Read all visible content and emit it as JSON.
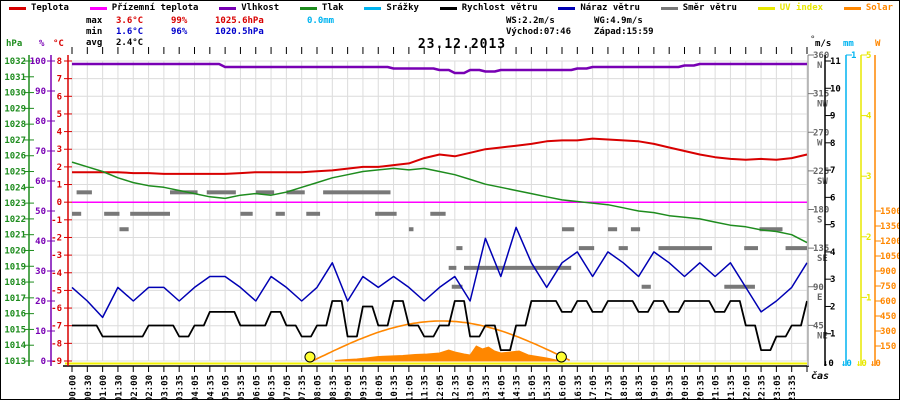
{
  "title": "23.12.2013",
  "legend": {
    "items": [
      {
        "name": "teplota",
        "label": "Teplota",
        "color": "#d80000",
        "text_color": "#000000"
      },
      {
        "name": "prizemni-teplota",
        "label": "Přízemní teplota",
        "color": "#ff00ff",
        "text_color": "#000000"
      },
      {
        "name": "vlhkost",
        "label": "Vlhkost",
        "color": "#7800b4",
        "text_color": "#000000"
      },
      {
        "name": "tlak",
        "label": "Tlak",
        "color": "#1e8c1e",
        "text_color": "#000000"
      },
      {
        "name": "srazky",
        "label": "Srážky",
        "color": "#00b4f0",
        "text_color": "#000000"
      },
      {
        "name": "rychlost-vetru",
        "label": "Rychlost větru",
        "color": "#000000",
        "text_color": "#000000"
      },
      {
        "name": "naraz-vetru",
        "label": "Náraz větru",
        "color": "#0000b4",
        "text_color": "#000000"
      },
      {
        "name": "smer-vetru",
        "label": "Směr větru",
        "color": "#787878",
        "text_color": "#000000"
      },
      {
        "name": "uv-index",
        "label": "UV index",
        "color": "#e8e800",
        "text_color": "#e8e800"
      },
      {
        "name": "solar",
        "label": "Solar",
        "color": "#ff8700",
        "text_color": "#ff8700"
      }
    ]
  },
  "stats": {
    "max": {
      "label": "max",
      "temp": "3.6°C",
      "hum": "99%",
      "press": "1025.6hPa",
      "rain": "0.0mm"
    },
    "min": {
      "label": "min",
      "temp": "1.6°C",
      "hum": "96%",
      "press": "1020.5hPa"
    },
    "avg": {
      "label": "avg",
      "temp": "2.4°C"
    },
    "ws": "WS:2.2m/s",
    "wg": "WG:4.9m/s",
    "sunrise": "Východ:07:46",
    "sunset": "Západ:15:59",
    "max_color": "#d80000",
    "min_color": "#0000cc",
    "rain_color": "#00b4f0"
  },
  "axis_headers": {
    "pressure": "hPa",
    "humidity": "%",
    "temperature": "°C",
    "direction": "°",
    "wind": "m/s",
    "rain": "mm",
    "solar": "W"
  },
  "footer": {
    "time_label": "čas",
    "zero_wind": "↓0",
    "zero_rain": "↓0",
    "zero_uv": "↓0",
    "zero_solar": "↓0"
  },
  "chart_data": {
    "type": "line",
    "title": "23.12.2013",
    "xlabel": "čas",
    "x_start_hour": 0,
    "x_end_hour": 24,
    "series_step_hours": 0.5,
    "grid": true,
    "x_tick_labels": [
      "00:00",
      "00:30",
      "01:00",
      "01:30",
      "02:00",
      "02:30",
      "03:05",
      "03:35",
      "04:05",
      "04:35",
      "05:05",
      "05:35",
      "06:05",
      "06:35",
      "07:05",
      "07:35",
      "08:05",
      "08:35",
      "09:05",
      "09:35",
      "10:05",
      "10:35",
      "11:05",
      "11:35",
      "12:05",
      "12:35",
      "13:05",
      "13:35",
      "14:05",
      "14:35",
      "15:05",
      "15:35",
      "16:05",
      "16:35",
      "17:05",
      "17:35",
      "18:05",
      "18:35",
      "19:05",
      "19:35",
      "20:05",
      "20:35",
      "21:05",
      "21:35",
      "22:05",
      "22:35",
      "23:05",
      "23:35"
    ],
    "axes": {
      "temperature_c": {
        "label": "°C",
        "min": -9,
        "max": 8,
        "tick_step": 1,
        "color": "#d80000"
      },
      "pressure_hpa": {
        "label": "hPa",
        "min": 1013,
        "max": 1032,
        "tick_step": 1,
        "color": "#1e8c1e"
      },
      "humidity_pct": {
        "label": "%",
        "min": 0,
        "max": 100,
        "tick_step": 10,
        "color": "#7800b4"
      },
      "direction_deg": {
        "label": "°",
        "min": 0,
        "max": 360,
        "tick_step": 45,
        "color": "#787878",
        "cardinals": [
          {
            "deg": 360,
            "num": "360",
            "card": "N"
          },
          {
            "deg": 315,
            "num": "315",
            "card": "NW"
          },
          {
            "deg": 270,
            "num": "270",
            "card": "W"
          },
          {
            "deg": 225,
            "num": "225",
            "card": "SW"
          },
          {
            "deg": 180,
            "num": "180",
            "card": "S"
          },
          {
            "deg": 135,
            "num": "135",
            "card": "SE"
          },
          {
            "deg": 90,
            "num": "90",
            "card": "E"
          },
          {
            "deg": 45,
            "num": "45",
            "card": "NE"
          }
        ]
      },
      "wind_ms": {
        "label": "m/s",
        "min": 0,
        "max": 11,
        "tick_step": 1,
        "color": "#000000"
      },
      "rain_mm": {
        "label": "mm",
        "min": 0,
        "max": 1,
        "tick_step": 1,
        "color": "#00b4f0"
      },
      "uv_index": {
        "label": "",
        "min": 0,
        "max": 5,
        "tick_step": 1,
        "color": "#e8e800"
      },
      "solar_w": {
        "label": "W",
        "min": 0,
        "max": 1500,
        "tick_step": 150,
        "color": "#ff8700"
      }
    },
    "series": [
      {
        "name": "temperature",
        "axis": "temperature_c",
        "color": "#d80000",
        "width": 2,
        "mode": "line",
        "values": [
          1.7,
          1.7,
          1.7,
          1.7,
          1.65,
          1.65,
          1.6,
          1.6,
          1.6,
          1.6,
          1.6,
          1.65,
          1.7,
          1.7,
          1.7,
          1.7,
          1.75,
          1.8,
          1.9,
          2.0,
          2.0,
          2.1,
          2.2,
          2.5,
          2.7,
          2.6,
          2.8,
          3.0,
          3.1,
          3.2,
          3.3,
          3.45,
          3.5,
          3.5,
          3.6,
          3.55,
          3.5,
          3.45,
          3.3,
          3.1,
          2.9,
          2.7,
          2.55,
          2.45,
          2.4,
          2.45,
          2.4,
          2.5,
          2.7
        ]
      },
      {
        "name": "ground_temperature",
        "axis": "temperature_c",
        "color": "#ff00ff",
        "width": 1.5,
        "mode": "line",
        "values": [
          0,
          0,
          0,
          0,
          0,
          0,
          0,
          0,
          0,
          0,
          0,
          0,
          0,
          0,
          0,
          0,
          0,
          0,
          0,
          0,
          0,
          0,
          0,
          0,
          0,
          0,
          0,
          0,
          0,
          0,
          0,
          0,
          0,
          0,
          0,
          0,
          0,
          0,
          0,
          0,
          0,
          0,
          0,
          0,
          0,
          0,
          0,
          0,
          0
        ]
      },
      {
        "name": "humidity",
        "axis": "humidity_pct",
        "color": "#7800b4",
        "width": 2.5,
        "mode": "step",
        "values": [
          99,
          99,
          99,
          99,
          99,
          99,
          99,
          99,
          99,
          99,
          98,
          98,
          98,
          98,
          98,
          98,
          98,
          98,
          98,
          98,
          98,
          97.5,
          97.5,
          97.5,
          97,
          96,
          97,
          96.5,
          97,
          97,
          97,
          97,
          97,
          97.5,
          98,
          98,
          98,
          98,
          98,
          98,
          98.5,
          99,
          99,
          99,
          99,
          99,
          99,
          99,
          99
        ]
      },
      {
        "name": "pressure",
        "axis": "pressure_hpa",
        "color": "#1e8c1e",
        "width": 1.5,
        "mode": "line",
        "values": [
          1025.6,
          1025.3,
          1025.0,
          1024.6,
          1024.3,
          1024.1,
          1024.0,
          1023.8,
          1023.6,
          1023.4,
          1023.3,
          1023.5,
          1023.6,
          1023.5,
          1023.7,
          1024.0,
          1024.3,
          1024.6,
          1024.8,
          1025.0,
          1025.1,
          1025.2,
          1025.1,
          1025.2,
          1025.0,
          1024.8,
          1024.5,
          1024.2,
          1024.0,
          1023.8,
          1023.6,
          1023.4,
          1023.2,
          1023.1,
          1023.0,
          1022.9,
          1022.7,
          1022.5,
          1022.4,
          1022.2,
          1022.1,
          1022.0,
          1021.8,
          1021.6,
          1021.5,
          1021.3,
          1021.2,
          1021.0,
          1020.5
        ]
      },
      {
        "name": "wind_speed",
        "axis": "wind_ms",
        "color": "#000000",
        "width": 1.8,
        "mode": "step",
        "values": [
          1.3,
          1.3,
          0.9,
          0.9,
          0.9,
          1.3,
          1.3,
          0.9,
          1.3,
          1.8,
          1.8,
          1.3,
          1.3,
          1.8,
          1.3,
          0.9,
          1.3,
          2.2,
          0.9,
          2.0,
          1.3,
          2.2,
          1.3,
          0.9,
          1.3,
          2.2,
          0.9,
          1.3,
          0.4,
          1.3,
          2.2,
          2.2,
          1.8,
          2.2,
          1.8,
          2.2,
          2.2,
          1.8,
          2.2,
          1.8,
          2.2,
          2.2,
          1.8,
          2.2,
          1.3,
          0.4,
          0.9,
          1.3,
          2.2
        ]
      },
      {
        "name": "wind_gust",
        "axis": "wind_ms",
        "color": "#0000b4",
        "width": 1.5,
        "mode": "line",
        "values": [
          2.7,
          2.2,
          1.6,
          2.7,
          2.2,
          2.7,
          2.7,
          2.2,
          2.7,
          3.1,
          3.1,
          2.7,
          2.2,
          3.1,
          2.7,
          2.2,
          2.7,
          3.6,
          2.2,
          3.1,
          2.7,
          3.1,
          2.7,
          2.2,
          2.7,
          3.1,
          2.2,
          4.5,
          3.1,
          4.9,
          3.6,
          2.7,
          3.6,
          4.0,
          3.1,
          4.0,
          3.6,
          3.1,
          4.0,
          3.6,
          3.1,
          3.6,
          3.1,
          3.6,
          2.7,
          1.8,
          2.2,
          2.7,
          3.6
        ]
      },
      {
        "name": "uv_index",
        "axis": "uv_index",
        "color": "#f0f000",
        "width": 2,
        "mode": "flat",
        "value": 0
      }
    ],
    "wind_direction_segments": [
      [
        0.0,
        0.3,
        175
      ],
      [
        0.15,
        0.65,
        200
      ],
      [
        1.05,
        1.55,
        175
      ],
      [
        1.55,
        1.85,
        157
      ],
      [
        1.9,
        3.2,
        175
      ],
      [
        3.2,
        4.1,
        200
      ],
      [
        4.4,
        5.35,
        200
      ],
      [
        5.5,
        5.9,
        175
      ],
      [
        6.0,
        6.6,
        200
      ],
      [
        6.65,
        6.95,
        175
      ],
      [
        7.0,
        7.6,
        200
      ],
      [
        7.65,
        8.1,
        175
      ],
      [
        8.2,
        10.4,
        200
      ],
      [
        9.9,
        10.6,
        175
      ],
      [
        11.0,
        11.15,
        157
      ],
      [
        11.7,
        12.2,
        175
      ],
      [
        12.3,
        12.55,
        112
      ],
      [
        12.4,
        12.75,
        90
      ],
      [
        12.55,
        12.75,
        135
      ],
      [
        12.8,
        16.3,
        112
      ],
      [
        16.0,
        16.4,
        157
      ],
      [
        16.55,
        17.05,
        135
      ],
      [
        17.5,
        17.8,
        157
      ],
      [
        17.85,
        18.15,
        135
      ],
      [
        18.25,
        18.55,
        157
      ],
      [
        18.6,
        18.9,
        90
      ],
      [
        19.15,
        20.9,
        135
      ],
      [
        21.3,
        22.3,
        90
      ],
      [
        21.95,
        22.4,
        135
      ],
      [
        22.45,
        23.2,
        157
      ],
      [
        23.3,
        24.0,
        135
      ]
    ],
    "solar_theoretical": {
      "start_hour": 7.85,
      "end_hour": 16.3,
      "peak_w": 400,
      "color": "#ff8700"
    },
    "solar_actual_points": [
      [
        8.6,
        5
      ],
      [
        9.0,
        15
      ],
      [
        9.3,
        20
      ],
      [
        9.6,
        30
      ],
      [
        10.0,
        45
      ],
      [
        10.4,
        50
      ],
      [
        10.8,
        55
      ],
      [
        11.2,
        65
      ],
      [
        11.6,
        70
      ],
      [
        12.0,
        80
      ],
      [
        12.3,
        110
      ],
      [
        12.5,
        90
      ],
      [
        12.8,
        70
      ],
      [
        13.0,
        60
      ],
      [
        13.2,
        150
      ],
      [
        13.4,
        120
      ],
      [
        13.6,
        140
      ],
      [
        13.8,
        100
      ],
      [
        14.0,
        80
      ],
      [
        14.3,
        90
      ],
      [
        14.6,
        100
      ],
      [
        14.9,
        60
      ],
      [
        15.2,
        45
      ],
      [
        15.5,
        30
      ],
      [
        15.8,
        10
      ],
      [
        15.95,
        0
      ]
    ],
    "sun_markers": {
      "sunrise_hour": 7.77,
      "sunset_hour": 15.98,
      "color": "#ffff33"
    },
    "precipitation_mm_total": 0.0,
    "grid_color": "#dcdcdc"
  }
}
